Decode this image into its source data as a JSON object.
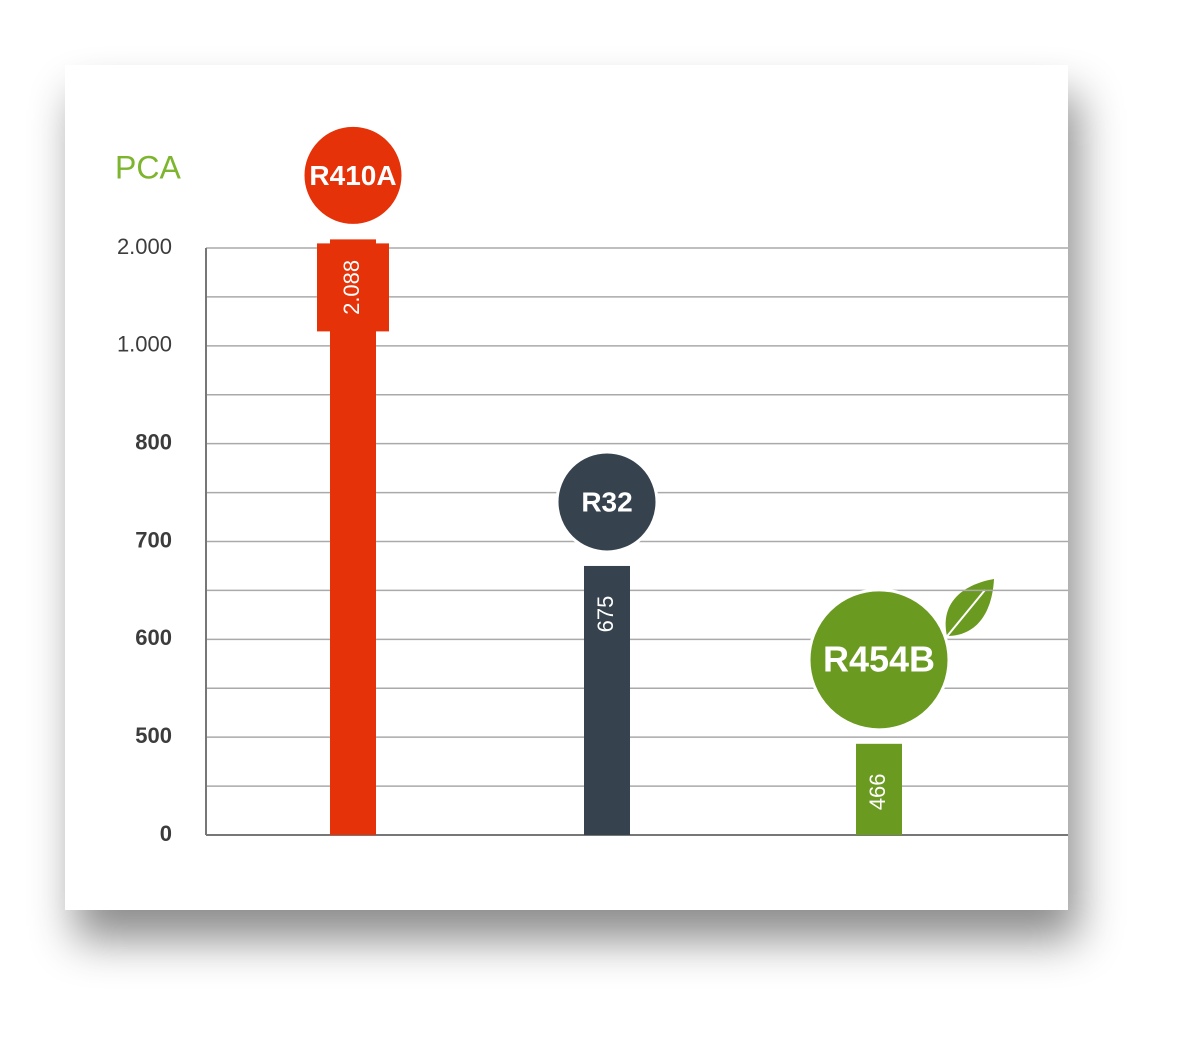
{
  "chart_data": {
    "type": "bar",
    "ylabel": "PCA",
    "categories": [
      "R410A",
      "R32",
      "R454B"
    ],
    "values": [
      2088,
      675,
      466
    ],
    "value_labels": [
      "2.088",
      "675",
      "466"
    ],
    "colors": [
      "#e63209",
      "#36434e",
      "#6a9a1f"
    ],
    "ylabel_color": "#7db52e",
    "ylim": [
      0,
      2000
    ],
    "yticks": [
      0,
      500,
      600,
      700,
      800,
      {
        "value": 1000,
        "label": "1.000"
      },
      {
        "value": 2000,
        "label": "2.000"
      }
    ],
    "grid": true
  }
}
